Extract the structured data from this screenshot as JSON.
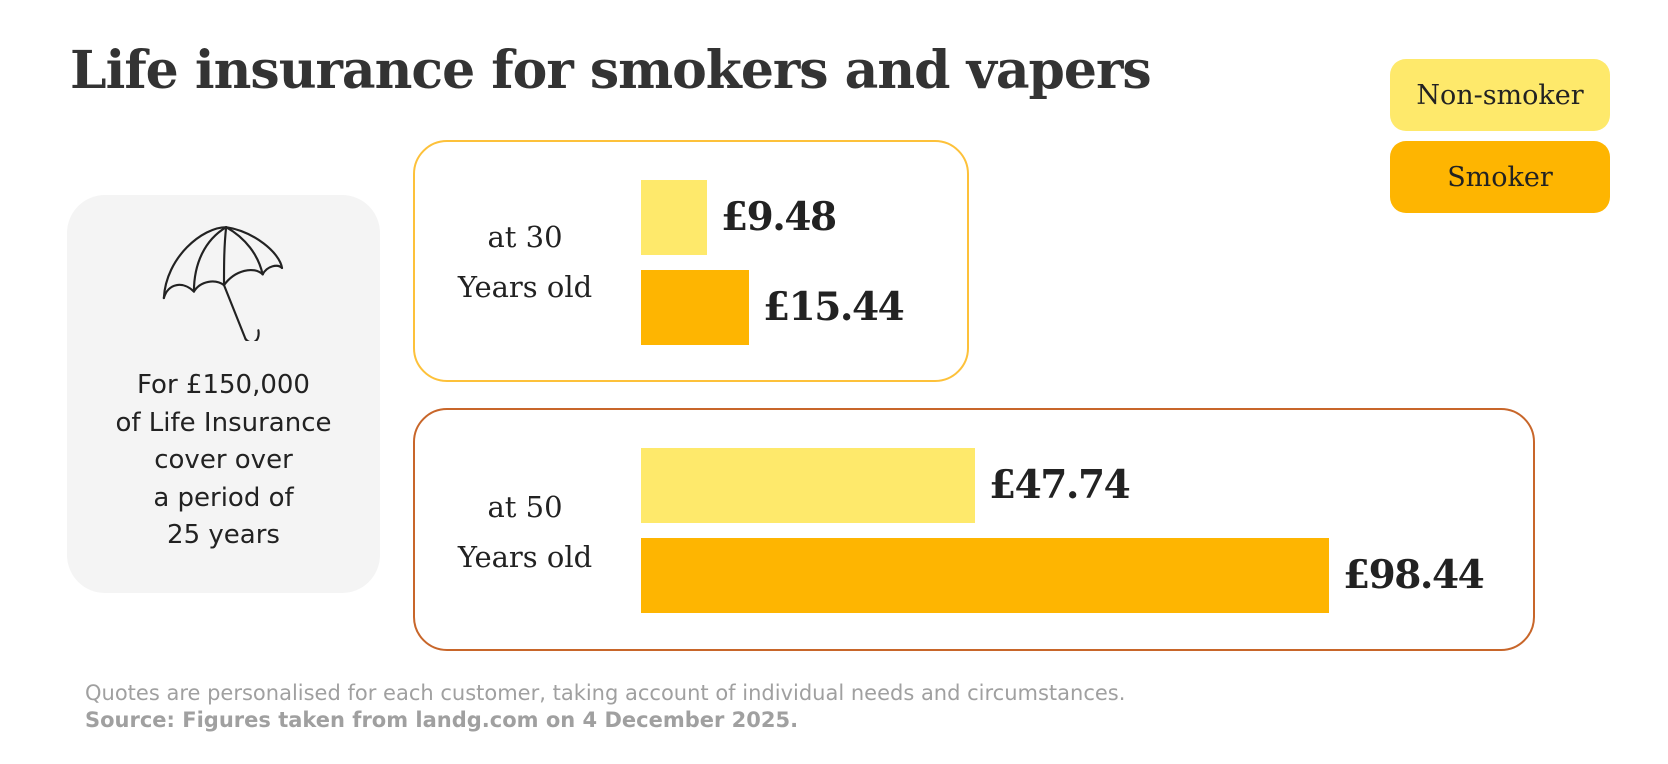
{
  "page": {
    "title": "Life insurance for smokers and vapers",
    "info": {
      "icon": "umbrella-icon",
      "lines": [
        "For £150,000",
        "of Life Insurance",
        "cover over",
        "a period of",
        "25 years"
      ]
    },
    "footer": {
      "note": "Quotes are personalised for each customer, taking account of individual needs and circumstances.",
      "source": "Source: Figures taken from landg.com on 4 December 2025."
    }
  },
  "chart_data": {
    "type": "bar",
    "orientation": "horizontal",
    "title": "Life insurance for smokers and vapers",
    "xlabel": "",
    "ylabel": "",
    "grid": false,
    "legend_position": "top-right",
    "legend": [
      {
        "name": "Non-smoker",
        "color": "#fee96b"
      },
      {
        "name": "Smoker",
        "color": "#feb501"
      }
    ],
    "groups": [
      {
        "label_line1": "at 30",
        "label_line2": "Years old",
        "bars": [
          {
            "series": "Non-smoker",
            "value": 9.48,
            "label": "£9.48"
          },
          {
            "series": "Smoker",
            "value": 15.44,
            "label": "£15.44"
          }
        ]
      },
      {
        "label_line1": "at 50",
        "label_line2": "Years old",
        "bars": [
          {
            "series": "Non-smoker",
            "value": 47.74,
            "label": "£47.74"
          },
          {
            "series": "Smoker",
            "value": 98.44,
            "label": "£98.44"
          }
        ]
      }
    ],
    "xlim": [
      0,
      98.44
    ]
  }
}
